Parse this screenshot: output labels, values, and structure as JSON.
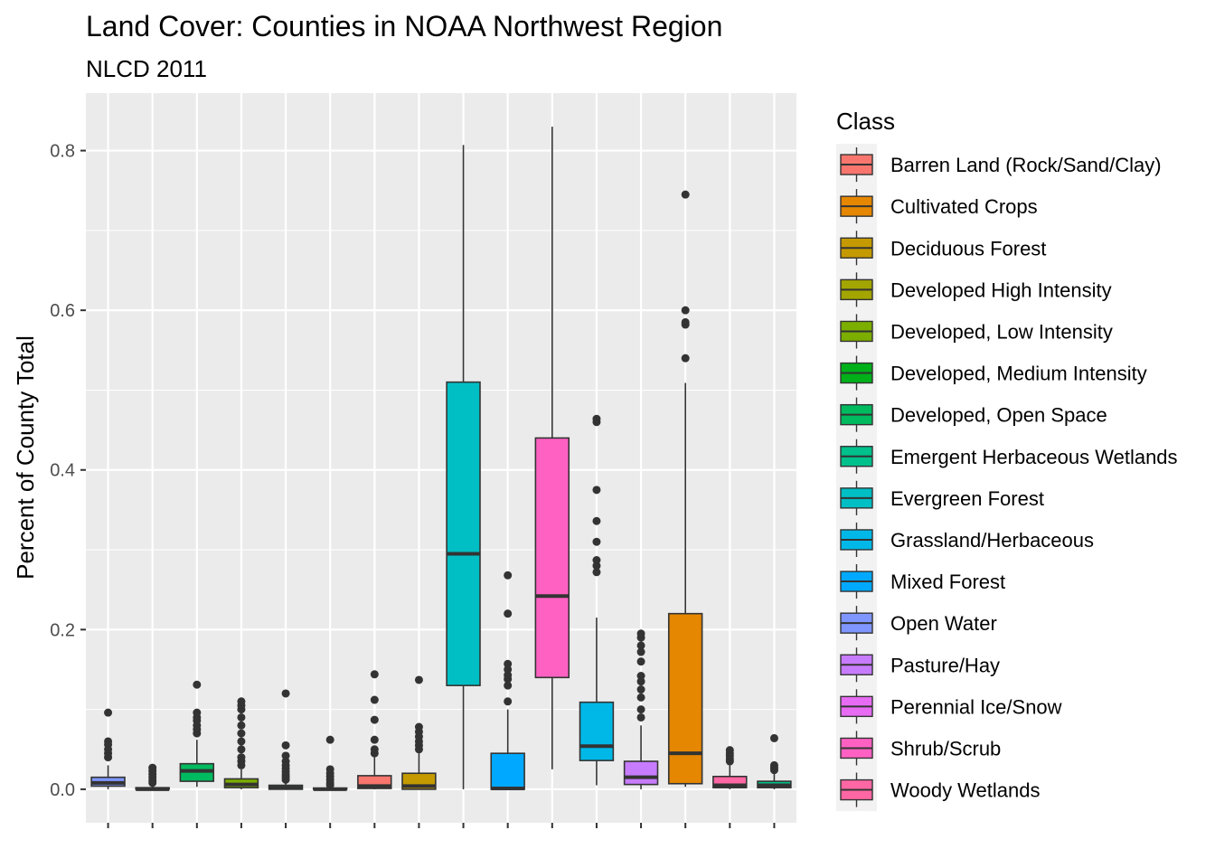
{
  "chart_data": {
    "type": "boxplot",
    "title": "Land Cover: Counties in NOAA Northwest Region",
    "subtitle": "NLCD 2011",
    "xlabel": "",
    "ylabel": "Percent of County Total",
    "ylim": [
      -0.042,
      0.872
    ],
    "yticks": [
      0.0,
      0.2,
      0.4,
      0.6,
      0.8
    ],
    "ytick_labels": [
      "0.0",
      "0.2",
      "0.4",
      "0.6",
      "0.8"
    ],
    "grid": true,
    "legend": {
      "title": "Class",
      "placement": "right"
    },
    "series": [
      {
        "name": "Open Water",
        "color": "#7F96FF",
        "min": 0.0,
        "q1": 0.004,
        "median": 0.008,
        "q3": 0.015,
        "max": 0.03,
        "outliers": [
          0.04,
          0.045,
          0.05,
          0.056,
          0.06,
          0.096
        ]
      },
      {
        "name": "Perennial Ice/Snow",
        "color": "#E76BF3",
        "min": 0.0,
        "q1": 0.0,
        "median": 0.0,
        "q3": 0.002,
        "max": 0.005,
        "outliers": [
          0.008,
          0.011,
          0.015,
          0.019,
          0.023,
          0.027
        ]
      },
      {
        "name": "Developed, Open Space",
        "color": "#00BA5F",
        "min": 0.003,
        "q1": 0.01,
        "median": 0.023,
        "q3": 0.032,
        "max": 0.062,
        "outliers": [
          0.07,
          0.075,
          0.08,
          0.086,
          0.09,
          0.096,
          0.131
        ]
      },
      {
        "name": "Developed, Low Intensity",
        "color": "#7CAE00",
        "min": 0.0,
        "q1": 0.002,
        "median": 0.006,
        "q3": 0.013,
        "max": 0.025,
        "outliers": [
          0.03,
          0.035,
          0.04,
          0.05,
          0.06,
          0.07,
          0.08,
          0.09,
          0.1,
          0.105,
          0.11
        ]
      },
      {
        "name": "Developed, Medium Intensity",
        "color": "#00B019",
        "min": 0.0,
        "q1": 0.0,
        "median": 0.002,
        "q3": 0.005,
        "max": 0.01,
        "outliers": [
          0.012,
          0.015,
          0.018,
          0.022,
          0.026,
          0.03,
          0.035,
          0.042,
          0.055,
          0.12
        ]
      },
      {
        "name": "Developed High Intensity",
        "color": "#A3A500",
        "min": 0.0,
        "q1": 0.0,
        "median": 0.0,
        "q3": 0.0015,
        "max": 0.003,
        "outliers": [
          0.005,
          0.008,
          0.012,
          0.016,
          0.02,
          0.025,
          0.062
        ]
      },
      {
        "name": "Barren Land (Rock/Sand/Clay)",
        "color": "#F8766D",
        "min": 0.0,
        "q1": 0.001,
        "median": 0.004,
        "q3": 0.017,
        "max": 0.04,
        "outliers": [
          0.045,
          0.05,
          0.062,
          0.087,
          0.112,
          0.144
        ]
      },
      {
        "name": "Deciduous Forest",
        "color": "#C49A00",
        "min": 0.0,
        "q1": 0.0,
        "median": 0.004,
        "q3": 0.02,
        "max": 0.045,
        "outliers": [
          0.05,
          0.055,
          0.06,
          0.066,
          0.072,
          0.078,
          0.137
        ]
      },
      {
        "name": "Evergreen Forest",
        "color": "#00BFC4",
        "min": 0.0,
        "q1": 0.13,
        "median": 0.295,
        "q3": 0.51,
        "max": 0.807,
        "outliers": []
      },
      {
        "name": "Mixed Forest",
        "color": "#00A9FF",
        "min": 0.0,
        "q1": 0.0,
        "median": 0.001,
        "q3": 0.045,
        "max": 0.1,
        "outliers": [
          0.11,
          0.13,
          0.138,
          0.143,
          0.15,
          0.157,
          0.22,
          0.268
        ]
      },
      {
        "name": "Shrub/Scrub",
        "color": "#FF61C3",
        "min": 0.025,
        "q1": 0.14,
        "median": 0.242,
        "q3": 0.44,
        "max": 0.83,
        "outliers": []
      },
      {
        "name": "Grassland/Herbaceous",
        "color": "#00B8E7",
        "min": 0.005,
        "q1": 0.036,
        "median": 0.054,
        "q3": 0.109,
        "max": 0.215,
        "outliers": [
          0.272,
          0.28,
          0.287,
          0.31,
          0.336,
          0.375,
          0.46,
          0.464
        ]
      },
      {
        "name": "Pasture/Hay",
        "color": "#C77CFF",
        "min": 0.0,
        "q1": 0.006,
        "median": 0.015,
        "q3": 0.035,
        "max": 0.08,
        "outliers": [
          0.09,
          0.1,
          0.115,
          0.125,
          0.135,
          0.142,
          0.16,
          0.172,
          0.18,
          0.19,
          0.195
        ]
      },
      {
        "name": "Cultivated Crops",
        "color": "#E58700",
        "min": 0.003,
        "q1": 0.007,
        "median": 0.045,
        "q3": 0.22,
        "max": 0.509,
        "outliers": [
          0.54,
          0.582,
          0.585,
          0.6,
          0.745
        ]
      },
      {
        "name": "Woody Wetlands",
        "color": "#FF67A4",
        "min": 0.0,
        "q1": 0.002,
        "median": 0.005,
        "q3": 0.016,
        "max": 0.03,
        "outliers": [
          0.035,
          0.038,
          0.042,
          0.045,
          0.049
        ]
      },
      {
        "name": "Emergent Herbaceous Wetlands",
        "color": "#00C08B",
        "min": 0.0,
        "q1": 0.002,
        "median": 0.005,
        "q3": 0.01,
        "max": 0.02,
        "outliers": [
          0.024,
          0.027,
          0.03,
          0.064
        ]
      }
    ],
    "legend_order": [
      {
        "name": "Barren Land (Rock/Sand/Clay)",
        "color": "#F8766D"
      },
      {
        "name": "Cultivated Crops",
        "color": "#E58700"
      },
      {
        "name": "Deciduous Forest",
        "color": "#C49A00"
      },
      {
        "name": "Developed High Intensity",
        "color": "#A3A500"
      },
      {
        "name": "Developed, Low Intensity",
        "color": "#7CAE00"
      },
      {
        "name": "Developed, Medium Intensity",
        "color": "#00B019"
      },
      {
        "name": "Developed, Open Space",
        "color": "#00BA5F"
      },
      {
        "name": "Emergent Herbaceous Wetlands",
        "color": "#00C08B"
      },
      {
        "name": "Evergreen Forest",
        "color": "#00BFC4"
      },
      {
        "name": "Grassland/Herbaceous",
        "color": "#00B8E7"
      },
      {
        "name": "Mixed Forest",
        "color": "#00A9FF"
      },
      {
        "name": "Open Water",
        "color": "#7F96FF"
      },
      {
        "name": "Pasture/Hay",
        "color": "#C77CFF"
      },
      {
        "name": "Perennial Ice/Snow",
        "color": "#E76BF3"
      },
      {
        "name": "Shrub/Scrub",
        "color": "#FF61C3"
      },
      {
        "name": "Woody Wetlands",
        "color": "#FF67A4"
      }
    ]
  }
}
